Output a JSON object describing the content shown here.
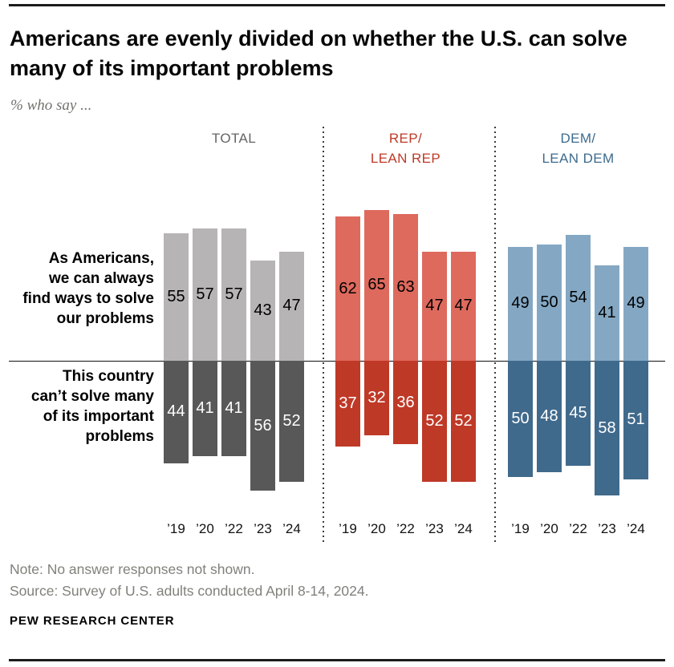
{
  "page": {
    "title": "Americans are evenly divided on whether the U.S. can solve many of its important problems",
    "subtitle": "% who say ...",
    "note": "Note: No answer responses not shown.",
    "source": "Source: Survey of U.S. adults conducted April 8-14, 2024.",
    "brand": "PEW RESEARCH CENTER"
  },
  "chart_data": {
    "type": "bar",
    "variant": "diverging-grouped",
    "unit": "percent",
    "years": [
      "’19",
      "’20",
      "’22",
      "’23",
      "’24"
    ],
    "row_labels": {
      "top_lines": [
        "As Americans,",
        "we can always",
        "find ways to solve",
        "our problems"
      ],
      "bottom_lines": [
        "This country",
        "can’t solve many",
        "of its important",
        "problems"
      ]
    },
    "axis": {
      "baseline": 0,
      "top_max": 65,
      "bottom_max": 58
    },
    "groups": [
      {
        "id": "total",
        "label_lines": [
          "TOTAL"
        ],
        "header_color": "#646466",
        "top_color": "#b6b4b4",
        "bottom_color": "#585858",
        "top_value_color": "#000000",
        "bottom_value_color": "#ffffff",
        "top_values": [
          55,
          57,
          57,
          43,
          47
        ],
        "bottom_values": [
          44,
          41,
          41,
          56,
          52
        ]
      },
      {
        "id": "rep",
        "label_lines": [
          "REP/",
          "LEAN REP"
        ],
        "header_color": "#bf3927",
        "top_color": "#de695d",
        "bottom_color": "#bf3927",
        "top_value_color": "#000000",
        "bottom_value_color": "#ffffff",
        "top_values": [
          62,
          65,
          63,
          47,
          47
        ],
        "bottom_values": [
          37,
          32,
          36,
          52,
          52
        ]
      },
      {
        "id": "dem",
        "label_lines": [
          "DEM/",
          "LEAN DEM"
        ],
        "header_color": "#3d6b8e",
        "top_color": "#84a8c4",
        "bottom_color": "#406a8c",
        "top_value_color": "#000000",
        "bottom_value_color": "#ffffff",
        "top_values": [
          49,
          50,
          54,
          41,
          49
        ],
        "bottom_values": [
          50,
          48,
          45,
          58,
          51
        ]
      }
    ]
  }
}
